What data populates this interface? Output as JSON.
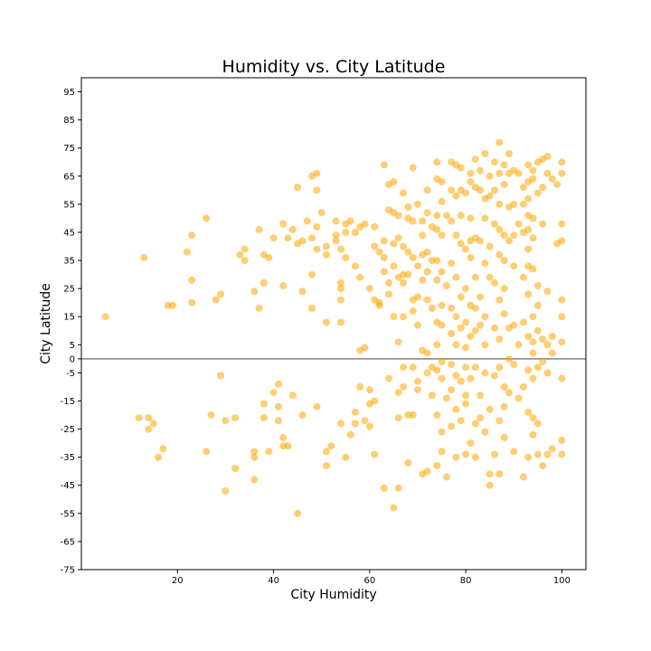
{
  "chart_data": {
    "type": "scatter",
    "title": "Humidity vs. City Latitude",
    "xlabel": "City Humidity",
    "ylabel": "City Latitude",
    "xlim": [
      0,
      105
    ],
    "ylim": [
      -75,
      100
    ],
    "xticks": [
      20,
      40,
      60,
      80,
      100
    ],
    "yticks": [
      95,
      85,
      75,
      65,
      55,
      45,
      35,
      25,
      15,
      5,
      0,
      -5,
      -15,
      -25,
      -35,
      -45,
      -55,
      -65,
      -75
    ],
    "hline": 0,
    "grid": false,
    "marker_color": "#ffa500",
    "hline_color": "#808080",
    "points": [
      [
        5,
        15
      ],
      [
        13,
        36
      ],
      [
        12,
        -21
      ],
      [
        14,
        -21
      ],
      [
        14,
        -25
      ],
      [
        15,
        -23
      ],
      [
        16,
        -35
      ],
      [
        17,
        -32
      ],
      [
        18,
        19
      ],
      [
        19,
        19
      ],
      [
        22,
        38
      ],
      [
        23,
        44
      ],
      [
        23,
        28
      ],
      [
        23,
        20
      ],
      [
        26,
        50
      ],
      [
        26,
        -33
      ],
      [
        27,
        -20
      ],
      [
        28,
        21
      ],
      [
        29,
        23
      ],
      [
        29,
        -6
      ],
      [
        30,
        -22
      ],
      [
        30,
        -47
      ],
      [
        32,
        -21
      ],
      [
        32,
        -39
      ],
      [
        33,
        37
      ],
      [
        34,
        39
      ],
      [
        34,
        35
      ],
      [
        36,
        24
      ],
      [
        36,
        -33
      ],
      [
        36,
        -35
      ],
      [
        36,
        -43
      ],
      [
        37,
        46
      ],
      [
        37,
        18
      ],
      [
        38,
        37
      ],
      [
        38,
        27
      ],
      [
        38,
        -16
      ],
      [
        38,
        -21
      ],
      [
        39,
        36
      ],
      [
        39,
        -33
      ],
      [
        40,
        43
      ],
      [
        40,
        -12
      ],
      [
        41,
        -17
      ],
      [
        41,
        -22
      ],
      [
        41,
        -9
      ],
      [
        42,
        48
      ],
      [
        42,
        26
      ],
      [
        42,
        -28
      ],
      [
        42,
        -31
      ],
      [
        43,
        43
      ],
      [
        43,
        -31
      ],
      [
        44,
        46
      ],
      [
        44,
        -13
      ],
      [
        45,
        41
      ],
      [
        45,
        61
      ],
      [
        45,
        -55
      ],
      [
        46,
        42
      ],
      [
        46,
        24
      ],
      [
        46,
        -20
      ],
      [
        47,
        49
      ],
      [
        48,
        43
      ],
      [
        48,
        30
      ],
      [
        48,
        18
      ],
      [
        48,
        65
      ],
      [
        49,
        66
      ],
      [
        49,
        60
      ],
      [
        49,
        39
      ],
      [
        49,
        47
      ],
      [
        49,
        -17
      ],
      [
        50,
        52
      ],
      [
        51,
        40
      ],
      [
        51,
        37
      ],
      [
        51,
        13
      ],
      [
        51,
        -33
      ],
      [
        51,
        -38
      ],
      [
        52,
        -31
      ],
      [
        53,
        44
      ],
      [
        53,
        49
      ],
      [
        53,
        42
      ],
      [
        54,
        39
      ],
      [
        54,
        27
      ],
      [
        54,
        25
      ],
      [
        54,
        21
      ],
      [
        54,
        13
      ],
      [
        54,
        -23
      ],
      [
        55,
        48
      ],
      [
        55,
        45
      ],
      [
        55,
        36
      ],
      [
        55,
        -35
      ],
      [
        56,
        49
      ],
      [
        56,
        -27
      ],
      [
        57,
        45
      ],
      [
        57,
        33
      ],
      [
        57,
        -19
      ],
      [
        57,
        -23
      ],
      [
        58,
        47
      ],
      [
        58,
        29
      ],
      [
        58,
        3
      ],
      [
        58,
        -10
      ],
      [
        59,
        48
      ],
      [
        59,
        4
      ],
      [
        59,
        -22
      ],
      [
        60,
        25
      ],
      [
        60,
        -11
      ],
      [
        60,
        -16
      ],
      [
        60,
        -24
      ],
      [
        61,
        47
      ],
      [
        61,
        40
      ],
      [
        61,
        21
      ],
      [
        61,
        -15
      ],
      [
        61,
        -34
      ],
      [
        62,
        38
      ],
      [
        62,
        20
      ],
      [
        62,
        19
      ],
      [
        63,
        69
      ],
      [
        63,
        42
      ],
      [
        63,
        36
      ],
      [
        63,
        31
      ],
      [
        63,
        -46
      ],
      [
        64,
        62
      ],
      [
        64,
        53
      ],
      [
        64,
        27
      ],
      [
        64,
        23
      ],
      [
        64,
        -7
      ],
      [
        65,
        63
      ],
      [
        65,
        52
      ],
      [
        65,
        41
      ],
      [
        65,
        33
      ],
      [
        65,
        15
      ],
      [
        65,
        -53
      ],
      [
        66,
        51
      ],
      [
        66,
        43
      ],
      [
        66,
        29
      ],
      [
        66,
        6
      ],
      [
        66,
        -12
      ],
      [
        66,
        -21
      ],
      [
        66,
        -46
      ],
      [
        67,
        59
      ],
      [
        67,
        40
      ],
      [
        67,
        30
      ],
      [
        67,
        27
      ],
      [
        67,
        15
      ],
      [
        67,
        -3
      ],
      [
        67,
        -10
      ],
      [
        68,
        54
      ],
      [
        68,
        50
      ],
      [
        68,
        38
      ],
      [
        68,
        30
      ],
      [
        68,
        -20
      ],
      [
        68,
        -37
      ],
      [
        69,
        68
      ],
      [
        69,
        49
      ],
      [
        69,
        36
      ],
      [
        69,
        21
      ],
      [
        69,
        17
      ],
      [
        69,
        -3
      ],
      [
        69,
        -20
      ],
      [
        70,
        55
      ],
      [
        70,
        33
      ],
      [
        70,
        22
      ],
      [
        70,
        12
      ],
      [
        70,
        -8
      ],
      [
        70,
        -11
      ],
      [
        71,
        49
      ],
      [
        71,
        44
      ],
      [
        71,
        37
      ],
      [
        71,
        28
      ],
      [
        71,
        3
      ],
      [
        71,
        -41
      ],
      [
        72,
        60
      ],
      [
        72,
        52
      ],
      [
        72,
        38
      ],
      [
        72,
        31
      ],
      [
        72,
        21
      ],
      [
        72,
        2
      ],
      [
        72,
        -5
      ],
      [
        72,
        -40
      ],
      [
        73,
        47
      ],
      [
        73,
        35
      ],
      [
        73,
        18
      ],
      [
        73,
        -3
      ],
      [
        73,
        -13
      ],
      [
        74,
        70
      ],
      [
        74,
        64
      ],
      [
        74,
        51
      ],
      [
        74,
        46
      ],
      [
        74,
        35
      ],
      [
        74,
        28
      ],
      [
        74,
        13
      ],
      [
        74,
        5
      ],
      [
        74,
        -4
      ],
      [
        74,
        -20
      ],
      [
        74,
        -38
      ],
      [
        75,
        63
      ],
      [
        75,
        56
      ],
      [
        75,
        44
      ],
      [
        75,
        31
      ],
      [
        75,
        19
      ],
      [
        75,
        12
      ],
      [
        75,
        -1
      ],
      [
        75,
        -7
      ],
      [
        75,
        -26
      ],
      [
        75,
        -33
      ],
      [
        76,
        51
      ],
      [
        76,
        26
      ],
      [
        76,
        -14
      ],
      [
        76,
        -42
      ],
      [
        77,
        70
      ],
      [
        77,
        60
      ],
      [
        77,
        49
      ],
      [
        77,
        34
      ],
      [
        77,
        18
      ],
      [
        77,
        9
      ],
      [
        77,
        -2
      ],
      [
        77,
        -11
      ],
      [
        77,
        -24
      ],
      [
        78,
        69
      ],
      [
        78,
        58
      ],
      [
        78,
        44
      ],
      [
        78,
        29
      ],
      [
        78,
        15
      ],
      [
        78,
        5
      ],
      [
        78,
        -6
      ],
      [
        78,
        -18
      ],
      [
        78,
        -35
      ],
      [
        79,
        68
      ],
      [
        79,
        60
      ],
      [
        79,
        51
      ],
      [
        79,
        41
      ],
      [
        79,
        22
      ],
      [
        79,
        11
      ],
      [
        79,
        -8
      ],
      [
        79,
        -22
      ],
      [
        80,
        59
      ],
      [
        80,
        39
      ],
      [
        80,
        25
      ],
      [
        80,
        13
      ],
      [
        80,
        4
      ],
      [
        80,
        -3
      ],
      [
        80,
        -13
      ],
      [
        80,
        -16
      ],
      [
        80,
        -34
      ],
      [
        81,
        66
      ],
      [
        81,
        63
      ],
      [
        81,
        50
      ],
      [
        81,
        42
      ],
      [
        81,
        36
      ],
      [
        81,
        19
      ],
      [
        81,
        8
      ],
      [
        81,
        -7
      ],
      [
        81,
        -30
      ],
      [
        82,
        71
      ],
      [
        82,
        61
      ],
      [
        82,
        43
      ],
      [
        82,
        29
      ],
      [
        82,
        18
      ],
      [
        82,
        10
      ],
      [
        82,
        -3
      ],
      [
        82,
        -23
      ],
      [
        82,
        -35
      ],
      [
        83,
        67
      ],
      [
        83,
        60
      ],
      [
        83,
        42
      ],
      [
        83,
        22
      ],
      [
        83,
        12
      ],
      [
        83,
        -13
      ],
      [
        83,
        -21
      ],
      [
        84,
        73
      ],
      [
        84,
        57
      ],
      [
        84,
        50
      ],
      [
        84,
        34
      ],
      [
        84,
        15
      ],
      [
        84,
        5
      ],
      [
        84,
        -5
      ],
      [
        84,
        -26
      ],
      [
        85,
        65
      ],
      [
        85,
        58
      ],
      [
        85,
        40
      ],
      [
        85,
        29
      ],
      [
        85,
        -18
      ],
      [
        85,
        -41
      ],
      [
        85,
        -45
      ],
      [
        86,
        70
      ],
      [
        86,
        60
      ],
      [
        86,
        48
      ],
      [
        86,
        27
      ],
      [
        86,
        11
      ],
      [
        86,
        -6
      ],
      [
        86,
        -34
      ],
      [
        87,
        77
      ],
      [
        87,
        66
      ],
      [
        87,
        55
      ],
      [
        87,
        46
      ],
      [
        87,
        37
      ],
      [
        87,
        21
      ],
      [
        87,
        7
      ],
      [
        87,
        -3
      ],
      [
        87,
        -22
      ],
      [
        87,
        -41
      ],
      [
        88,
        69
      ],
      [
        88,
        62
      ],
      [
        88,
        44
      ],
      [
        88,
        35
      ],
      [
        88,
        25
      ],
      [
        88,
        16
      ],
      [
        88,
        -10
      ],
      [
        88,
        -17
      ],
      [
        88,
        -28
      ],
      [
        89,
        73
      ],
      [
        89,
        66
      ],
      [
        89,
        54
      ],
      [
        89,
        42
      ],
      [
        89,
        11
      ],
      [
        89,
        0
      ],
      [
        89,
        -12
      ],
      [
        90,
        67
      ],
      [
        90,
        55
      ],
      [
        90,
        44
      ],
      [
        90,
        33
      ],
      [
        90,
        12
      ],
      [
        90,
        -2
      ],
      [
        90,
        -33
      ],
      [
        91,
        66
      ],
      [
        91,
        48
      ],
      [
        91,
        5
      ],
      [
        91,
        -14
      ],
      [
        92,
        61
      ],
      [
        92,
        55
      ],
      [
        92,
        45
      ],
      [
        92,
        29
      ],
      [
        92,
        13
      ],
      [
        92,
        -10
      ],
      [
        92,
        -42
      ],
      [
        93,
        69
      ],
      [
        93,
        63
      ],
      [
        93,
        57
      ],
      [
        93,
        51
      ],
      [
        93,
        46
      ],
      [
        93,
        39
      ],
      [
        93,
        33
      ],
      [
        93,
        23
      ],
      [
        93,
        8
      ],
      [
        93,
        -4
      ],
      [
        93,
        -19
      ],
      [
        93,
        -35
      ],
      [
        94,
        67
      ],
      [
        94,
        64
      ],
      [
        94,
        50
      ],
      [
        94,
        43
      ],
      [
        94,
        32
      ],
      [
        94,
        15
      ],
      [
        94,
        6
      ],
      [
        94,
        2
      ],
      [
        94,
        -7
      ],
      [
        94,
        -21
      ],
      [
        94,
        -27
      ],
      [
        95,
        70
      ],
      [
        95,
        59
      ],
      [
        95,
        26
      ],
      [
        95,
        19
      ],
      [
        95,
        10
      ],
      [
        95,
        -3
      ],
      [
        95,
        -23
      ],
      [
        95,
        -34
      ],
      [
        96,
        71
      ],
      [
        96,
        61
      ],
      [
        96,
        48
      ],
      [
        96,
        7
      ],
      [
        96,
        -1
      ],
      [
        96,
        -38
      ],
      [
        97,
        72
      ],
      [
        97,
        66
      ],
      [
        97,
        24
      ],
      [
        97,
        5
      ],
      [
        97,
        -5
      ],
      [
        97,
        -34
      ],
      [
        98,
        64
      ],
      [
        98,
        8
      ],
      [
        98,
        2
      ],
      [
        98,
        -32
      ],
      [
        99,
        62
      ],
      [
        99,
        41
      ],
      [
        100,
        70
      ],
      [
        100,
        66
      ],
      [
        100,
        48
      ],
      [
        100,
        42
      ],
      [
        100,
        21
      ],
      [
        100,
        15
      ],
      [
        100,
        6
      ],
      [
        100,
        -7
      ],
      [
        100,
        -29
      ],
      [
        100,
        -34
      ]
    ]
  }
}
